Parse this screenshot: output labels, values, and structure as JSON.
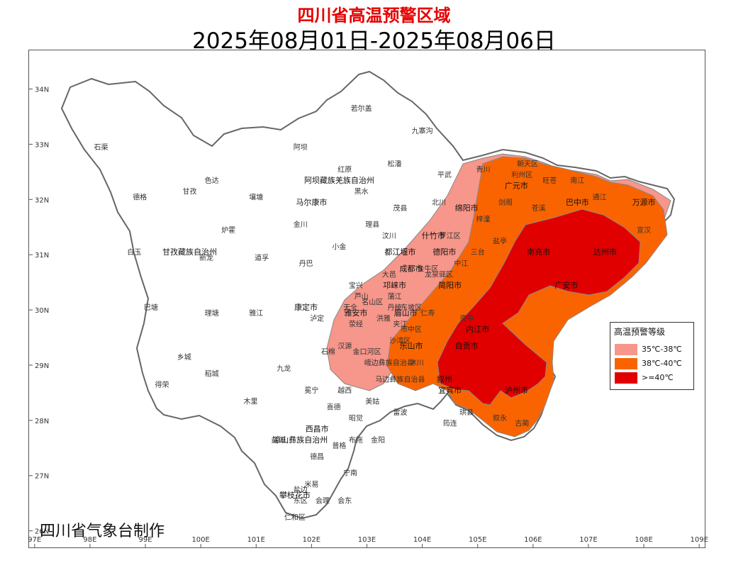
{
  "title": "四川省高温预警区域",
  "date_range": "2025年08月01日-2025年08月06日",
  "credit": "四川省气象台制作",
  "legend": {
    "title": "高温预警等级",
    "items": [
      {
        "label": "35℃-38℃",
        "color": "#f7968a"
      },
      {
        "label": "38℃-40℃",
        "color": "#fa6400"
      },
      {
        "label": ">=40℃",
        "color": "#e00000"
      }
    ]
  },
  "axes": {
    "lon": {
      "min": 96.9,
      "max": 109.1,
      "ticks": [
        "97E",
        "98E",
        "99E",
        "100E",
        "101E",
        "102E",
        "103E",
        "104E",
        "105E",
        "106E",
        "107E",
        "108E",
        "109E"
      ],
      "values": [
        97,
        98,
        99,
        100,
        101,
        102,
        103,
        104,
        105,
        106,
        107,
        108,
        109
      ]
    },
    "lat": {
      "min": 25.7,
      "max": 34.7,
      "ticks": [
        "26N",
        "27N",
        "28N",
        "29N",
        "30N",
        "31N",
        "32N",
        "33N",
        "34N"
      ],
      "values": [
        26,
        27,
        28,
        29,
        30,
        31,
        32,
        33,
        34
      ]
    }
  },
  "place_names": [
    {
      "name": "若尔盖",
      "lon": 102.9,
      "lat": 33.6
    },
    {
      "name": "石渠",
      "lon": 98.2,
      "lat": 32.9
    },
    {
      "name": "九寨沟",
      "lon": 104.0,
      "lat": 33.2
    },
    {
      "name": "阿坝",
      "lon": 101.8,
      "lat": 32.9
    },
    {
      "name": "红原",
      "lon": 102.6,
      "lat": 32.5
    },
    {
      "name": "松潘",
      "lon": 103.5,
      "lat": 32.6
    },
    {
      "name": "平武",
      "lon": 104.4,
      "lat": 32.4
    },
    {
      "name": "青川",
      "lon": 105.1,
      "lat": 32.5
    },
    {
      "name": "朝天区",
      "lon": 105.9,
      "lat": 32.6
    },
    {
      "name": "利州区",
      "lon": 105.8,
      "lat": 32.4
    },
    {
      "name": "阿坝藏族羌族自治州",
      "lon": 102.5,
      "lat": 32.3
    },
    {
      "name": "色达",
      "lon": 100.2,
      "lat": 32.3
    },
    {
      "name": "广元市",
      "lon": 105.7,
      "lat": 32.2
    },
    {
      "name": "旺苍",
      "lon": 106.3,
      "lat": 32.3
    },
    {
      "name": "南江",
      "lon": 106.8,
      "lat": 32.3
    },
    {
      "name": "黑水",
      "lon": 102.9,
      "lat": 32.1
    },
    {
      "name": "甘孜",
      "lon": 99.8,
      "lat": 32.1
    },
    {
      "name": "德格",
      "lon": 98.9,
      "lat": 32.0
    },
    {
      "name": "壤塘",
      "lon": 101.0,
      "lat": 32.0
    },
    {
      "name": "马尔康市",
      "lon": 102.0,
      "lat": 31.9
    },
    {
      "name": "通江",
      "lon": 107.2,
      "lat": 32.0
    },
    {
      "name": "万源市",
      "lon": 108.0,
      "lat": 31.9
    },
    {
      "name": "巴中市",
      "lon": 106.8,
      "lat": 31.9
    },
    {
      "name": "剑阁",
      "lon": 105.5,
      "lat": 31.9
    },
    {
      "name": "苍溪",
      "lon": 106.1,
      "lat": 31.8
    },
    {
      "name": "茂县",
      "lon": 103.6,
      "lat": 31.8
    },
    {
      "name": "北川",
      "lon": 104.3,
      "lat": 31.9
    },
    {
      "name": "绵阳市",
      "lon": 104.8,
      "lat": 31.8
    },
    {
      "name": "梓潼",
      "lon": 105.1,
      "lat": 31.6
    },
    {
      "name": "金川",
      "lon": 101.8,
      "lat": 31.5
    },
    {
      "name": "理县",
      "lon": 103.1,
      "lat": 31.5
    },
    {
      "name": "炉霍",
      "lon": 100.5,
      "lat": 31.4
    },
    {
      "name": "宣汉",
      "lon": 108.0,
      "lat": 31.4
    },
    {
      "name": "什竹市",
      "lon": 104.2,
      "lat": 31.3
    },
    {
      "name": "汶川",
      "lon": 103.4,
      "lat": 31.3
    },
    {
      "name": "罗江区",
      "lon": 104.5,
      "lat": 31.3
    },
    {
      "name": "盐亭",
      "lon": 105.4,
      "lat": 31.2
    },
    {
      "name": "小金",
      "lon": 102.5,
      "lat": 31.1
    },
    {
      "name": "白玉",
      "lon": 98.8,
      "lat": 31.0
    },
    {
      "name": "甘孜藏族自治州",
      "lon": 99.8,
      "lat": 31.0
    },
    {
      "name": "新龙",
      "lon": 100.1,
      "lat": 30.9
    },
    {
      "name": "都江堰市",
      "lon": 103.6,
      "lat": 31.0
    },
    {
      "name": "德阳市",
      "lon": 104.4,
      "lat": 31.0
    },
    {
      "name": "三台",
      "lon": 105.0,
      "lat": 31.0
    },
    {
      "name": "南充市",
      "lon": 106.1,
      "lat": 31.0
    },
    {
      "name": "达州市",
      "lon": 107.3,
      "lat": 31.0
    },
    {
      "name": "中江",
      "lon": 104.7,
      "lat": 30.8
    },
    {
      "name": "道孚",
      "lon": 101.1,
      "lat": 30.9
    },
    {
      "name": "丹巴",
      "lon": 101.9,
      "lat": 30.8
    },
    {
      "name": "成都市",
      "lon": 103.8,
      "lat": 30.7
    },
    {
      "name": "金牛区",
      "lon": 104.1,
      "lat": 30.7
    },
    {
      "name": "大邑",
      "lon": 103.4,
      "lat": 30.6
    },
    {
      "name": "龙泉驿区",
      "lon": 104.3,
      "lat": 30.6
    },
    {
      "name": "宝兴",
      "lon": 102.8,
      "lat": 30.4
    },
    {
      "name": "邛崃市",
      "lon": 103.5,
      "lat": 30.4
    },
    {
      "name": "简阳市",
      "lon": 104.5,
      "lat": 30.4
    },
    {
      "name": "广安市",
      "lon": 106.6,
      "lat": 30.4
    },
    {
      "name": "芦山",
      "lon": 102.9,
      "lat": 30.2
    },
    {
      "name": "蒲江",
      "lon": 103.5,
      "lat": 30.2
    },
    {
      "name": "天全",
      "lon": 102.7,
      "lat": 30.0
    },
    {
      "name": "雅安市",
      "lon": 102.8,
      "lat": 29.9
    },
    {
      "name": "名山区",
      "lon": 103.1,
      "lat": 30.1
    },
    {
      "name": "丹棱",
      "lon": 103.5,
      "lat": 30.0
    },
    {
      "name": "东坡区",
      "lon": 103.8,
      "lat": 30.0
    },
    {
      "name": "眉山市",
      "lon": 103.7,
      "lat": 29.9
    },
    {
      "name": "仁寿",
      "lon": 104.1,
      "lat": 29.9
    },
    {
      "name": "资中",
      "lon": 104.8,
      "lat": 29.8
    },
    {
      "name": "巴塘",
      "lon": 99.1,
      "lat": 30.0
    },
    {
      "name": "理塘",
      "lon": 100.2,
      "lat": 29.9
    },
    {
      "name": "雅江",
      "lon": 101.0,
      "lat": 29.9
    },
    {
      "name": "康定市",
      "lon": 101.9,
      "lat": 30.0
    },
    {
      "name": "泸定",
      "lon": 102.1,
      "lat": 29.8
    },
    {
      "name": "荥经",
      "lon": 102.8,
      "lat": 29.7
    },
    {
      "name": "洪雅",
      "lon": 103.3,
      "lat": 29.8
    },
    {
      "name": "夹江",
      "lon": 103.6,
      "lat": 29.7
    },
    {
      "name": "市中区",
      "lon": 103.8,
      "lat": 29.6
    },
    {
      "name": "内江市",
      "lon": 105.0,
      "lat": 29.6
    },
    {
      "name": "汉源",
      "lon": 102.6,
      "lat": 29.3
    },
    {
      "name": "乐山市",
      "lon": 103.8,
      "lat": 29.3
    },
    {
      "name": "沙湾区",
      "lon": 103.6,
      "lat": 29.4
    },
    {
      "name": "自贡市",
      "lon": 104.8,
      "lat": 29.3
    },
    {
      "name": "乡城",
      "lon": 99.7,
      "lat": 29.1
    },
    {
      "name": "稻城",
      "lon": 100.2,
      "lat": 28.8
    },
    {
      "name": "石棉",
      "lon": 102.3,
      "lat": 29.2
    },
    {
      "name": "金口河区",
      "lon": 103.0,
      "lat": 29.2
    },
    {
      "name": "峨边彝族自治县",
      "lon": 103.4,
      "lat": 29.0
    },
    {
      "name": "沐川",
      "lon": 103.9,
      "lat": 29.0
    },
    {
      "name": "九龙",
      "lon": 101.5,
      "lat": 28.9
    },
    {
      "name": "叙州",
      "lon": 104.4,
      "lat": 28.7
    },
    {
      "name": "马边彝族自治县",
      "lon": 103.6,
      "lat": 28.7
    },
    {
      "name": "得荣",
      "lon": 99.3,
      "lat": 28.6
    },
    {
      "name": "冕宁",
      "lon": 102.0,
      "lat": 28.5
    },
    {
      "name": "越西",
      "lon": 102.6,
      "lat": 28.5
    },
    {
      "name": "宜宾市",
      "lon": 104.5,
      "lat": 28.5
    },
    {
      "name": "泸州市",
      "lon": 105.7,
      "lat": 28.5
    },
    {
      "name": "木里",
      "lon": 100.9,
      "lat": 28.3
    },
    {
      "name": "美姑",
      "lon": 103.1,
      "lat": 28.3
    },
    {
      "name": "雷波",
      "lon": 103.6,
      "lat": 28.1
    },
    {
      "name": "喜德",
      "lon": 102.4,
      "lat": 28.2
    },
    {
      "name": "珙县",
      "lon": 104.8,
      "lat": 28.1
    },
    {
      "name": "叙永",
      "lon": 105.4,
      "lat": 28.0
    },
    {
      "name": "古蔺",
      "lon": 105.8,
      "lat": 27.9
    },
    {
      "name": "筠连",
      "lon": 104.5,
      "lat": 27.9
    },
    {
      "name": "昭觉",
      "lon": 102.8,
      "lat": 28.0
    },
    {
      "name": "西昌市",
      "lon": 102.1,
      "lat": 27.8
    },
    {
      "name": "盐源",
      "lon": 101.4,
      "lat": 27.6
    },
    {
      "name": "凉山彝族自治州",
      "lon": 101.8,
      "lat": 27.6
    },
    {
      "name": "布拖",
      "lon": 102.8,
      "lat": 27.6
    },
    {
      "name": "金阳",
      "lon": 103.2,
      "lat": 27.6
    },
    {
      "name": "普格",
      "lon": 102.5,
      "lat": 27.5
    },
    {
      "name": "德昌",
      "lon": 102.1,
      "lat": 27.3
    },
    {
      "name": "宁南",
      "lon": 102.7,
      "lat": 27.0
    },
    {
      "name": "米易",
      "lon": 102.0,
      "lat": 26.8
    },
    {
      "name": "盐边",
      "lon": 101.8,
      "lat": 26.7
    },
    {
      "name": "攀枝花市",
      "lon": 101.7,
      "lat": 26.6
    },
    {
      "name": "东区",
      "lon": 101.8,
      "lat": 26.5
    },
    {
      "name": "会理",
      "lon": 102.2,
      "lat": 26.5
    },
    {
      "name": "会东",
      "lon": 102.6,
      "lat": 26.5
    },
    {
      "name": "仁和区",
      "lon": 101.7,
      "lat": 26.2
    }
  ]
}
